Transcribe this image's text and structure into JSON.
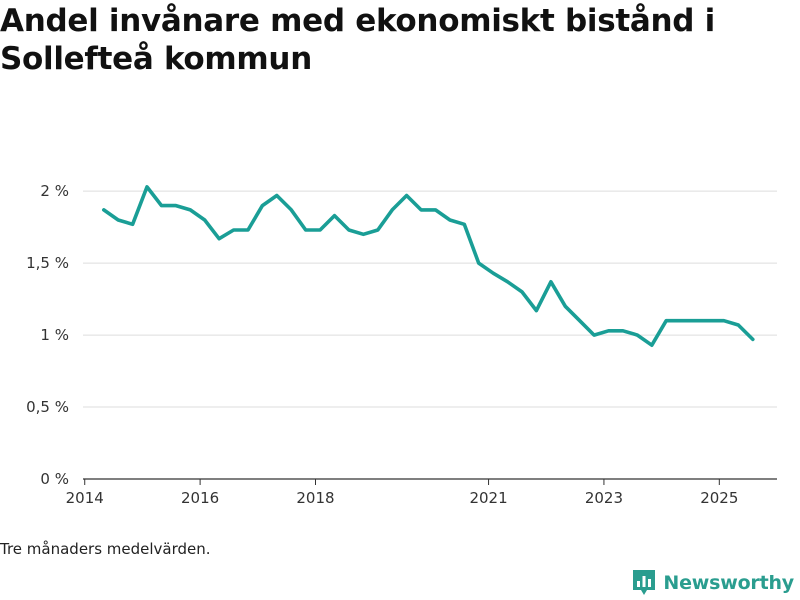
{
  "title": "Andel invånare med ekonomiskt bistånd i Sollefteå kommun",
  "footnote": "Tre månaders medelvärden.",
  "brand": {
    "name": "Newsworthy",
    "icon": "bar-chart-icon"
  },
  "colors": {
    "line": "#1a9e96",
    "grid": "#dddddd",
    "axis": "#333333",
    "text": "#333333",
    "brand": "#2a9d8f"
  },
  "chart_data": {
    "type": "line",
    "title": "Andel invånare med ekonomiskt bistånd i Sollefteå kommun",
    "xlabel": "",
    "ylabel": "",
    "ylim": [
      0,
      2.3
    ],
    "xlim": [
      2013.97,
      2026.0
    ],
    "yticks": [
      {
        "value": 0,
        "label": "0 %"
      },
      {
        "value": 0.5,
        "label": "0,5 %"
      },
      {
        "value": 1,
        "label": "1 %"
      },
      {
        "value": 1.5,
        "label": "1,5 %"
      },
      {
        "value": 2,
        "label": "2 %"
      }
    ],
    "xticks": [
      {
        "value": 2014,
        "label": "2014"
      },
      {
        "value": 2016,
        "label": "2016"
      },
      {
        "value": 2018,
        "label": "2018"
      },
      {
        "value": 2021,
        "label": "2021"
      },
      {
        "value": 2023,
        "label": "2023"
      },
      {
        "value": 2025,
        "label": "2025"
      }
    ],
    "grid": true,
    "series": [
      {
        "name": "Andel invånare med ekonomiskt bistånd",
        "x": [
          2014.33,
          2014.58,
          2014.83,
          2015.08,
          2015.33,
          2015.58,
          2015.83,
          2016.08,
          2016.33,
          2016.58,
          2016.83,
          2017.08,
          2017.33,
          2017.58,
          2017.83,
          2018.08,
          2018.33,
          2018.58,
          2018.83,
          2019.08,
          2019.33,
          2019.58,
          2019.83,
          2020.08,
          2020.33,
          2020.58,
          2020.83,
          2021.08,
          2021.33,
          2021.58,
          2021.83,
          2022.08,
          2022.33,
          2022.58,
          2022.83,
          2023.08,
          2023.33,
          2023.58,
          2023.83,
          2024.08,
          2024.33,
          2024.58,
          2024.83,
          2025.08,
          2025.33,
          2025.58
        ],
        "values": [
          1.87,
          1.8,
          1.77,
          2.03,
          1.9,
          1.9,
          1.87,
          1.8,
          1.67,
          1.73,
          1.73,
          1.9,
          1.97,
          1.87,
          1.73,
          1.73,
          1.83,
          1.73,
          1.7,
          1.73,
          1.87,
          1.97,
          1.87,
          1.87,
          1.8,
          1.77,
          1.5,
          1.43,
          1.37,
          1.3,
          1.17,
          1.37,
          1.2,
          1.1,
          1.0,
          1.03,
          1.03,
          1.0,
          0.93,
          1.1,
          1.1,
          1.1,
          1.1,
          1.1,
          1.07,
          0.97
        ]
      }
    ]
  }
}
